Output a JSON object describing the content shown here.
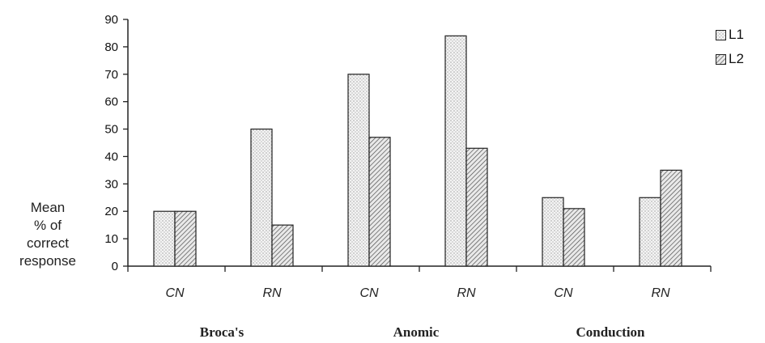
{
  "chart_data": {
    "type": "bar",
    "ylabel": [
      "Mean",
      "% of",
      "correct",
      "response"
    ],
    "ylim": [
      0,
      90
    ],
    "yticks": [
      0,
      10,
      20,
      30,
      40,
      50,
      60,
      70,
      80,
      90
    ],
    "groups": [
      "Broca's",
      "Anomic",
      "Conduction"
    ],
    "categories": [
      "CN",
      "RN",
      "CN",
      "RN",
      "CN",
      "RN"
    ],
    "category_group": [
      0,
      0,
      1,
      1,
      2,
      2
    ],
    "series": [
      {
        "name": "L1",
        "pattern": "dotted",
        "values": [
          20,
          50,
          70,
          84,
          25,
          25
        ]
      },
      {
        "name": "L2",
        "pattern": "hatched",
        "values": [
          20,
          15,
          47,
          43,
          21,
          35
        ]
      }
    ],
    "legend": {
      "position": "top-right",
      "items": [
        "L1",
        "L2"
      ]
    },
    "grid": false
  },
  "colors": {
    "axis": "#222222",
    "bar_fill": "#f2f2f2",
    "bar_stroke": "#222222",
    "text": "#111111"
  }
}
